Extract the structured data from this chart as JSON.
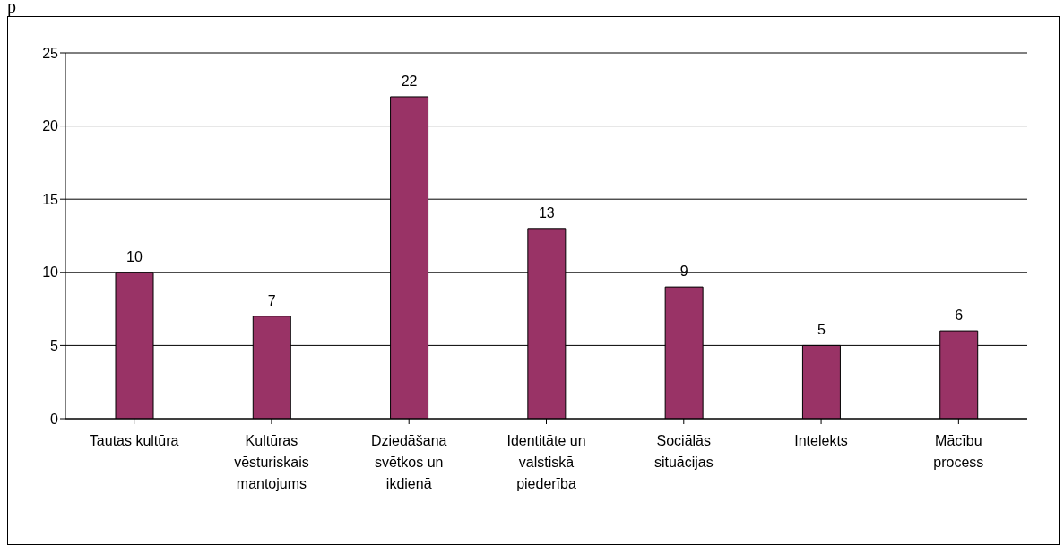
{
  "chart_data": {
    "type": "bar",
    "categories": [
      "Tautas kultūra",
      "Kultūras vēsturiskais mantojums",
      "Dziedāšana svētkos un ikdienā",
      "Identitāte un valstiskā piederība",
      "Sociālās situācijas",
      "Intelekts",
      "Mācību process"
    ],
    "values": [
      10,
      7,
      22,
      13,
      9,
      5,
      6
    ],
    "color": "#993366",
    "ylim": [
      0,
      25
    ],
    "yticks": [
      0,
      5,
      10,
      15,
      20,
      25
    ],
    "grid": "y",
    "data_labels": true,
    "annotations": [
      "p"
    ]
  }
}
